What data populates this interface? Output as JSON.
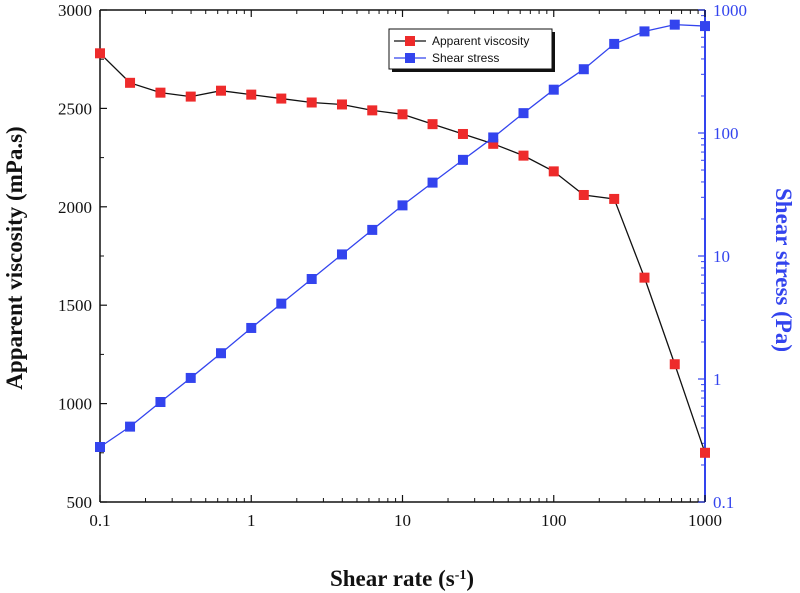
{
  "chart_data": {
    "type": "line",
    "xlabel_main": "Shear rate (s",
    "xlabel_sup": "-1",
    "xlabel_end": ")",
    "ylabel_left": "Apparent viscosity (mPa.s)",
    "ylabel_right": "Shear stress (Pa)",
    "x_scale": "log",
    "xlim": [
      0.1,
      1000
    ],
    "x_ticks": [
      0.1,
      1,
      10,
      100,
      1000
    ],
    "x_tick_labels": [
      "0.1",
      "1",
      "10",
      "100",
      "1000"
    ],
    "y_left_lim": [
      500,
      3000
    ],
    "y_left_ticks": [
      500,
      1000,
      1500,
      2000,
      2500,
      3000
    ],
    "y_left_tick_labels": [
      "500",
      "1000",
      "1500",
      "2000",
      "2500",
      "3000"
    ],
    "y_right_scale": "log",
    "y_right_lim": [
      0.1,
      1000
    ],
    "y_right_ticks": [
      0.1,
      1,
      10,
      100,
      1000
    ],
    "y_right_tick_labels": [
      "0.1",
      "1",
      "10",
      "100",
      "1000"
    ],
    "grid": false,
    "legend_position": "top-right",
    "x": [
      0.1,
      0.158,
      0.251,
      0.398,
      0.631,
      1,
      1.58,
      2.51,
      3.98,
      6.31,
      10,
      15.8,
      25.1,
      39.8,
      63.1,
      100,
      158,
      251,
      398,
      631,
      1000
    ],
    "series": [
      {
        "name": "Apparent viscosity",
        "axis": "left",
        "color": "#ee2b2b",
        "line_color": "#111111",
        "values": [
          2780,
          2630,
          2580,
          2560,
          2590,
          2570,
          2550,
          2530,
          2520,
          2490,
          2470,
          2420,
          2370,
          2320,
          2260,
          2180,
          2060,
          2040,
          1640,
          1200,
          750
        ]
      },
      {
        "name": "Shear stress",
        "axis": "right",
        "color": "#3344ee",
        "line_color": "#3344ee",
        "values": [
          0.28,
          0.41,
          0.65,
          1.02,
          1.62,
          2.6,
          4.1,
          6.5,
          10.3,
          16.3,
          25.8,
          39.5,
          60.5,
          92,
          145,
          225,
          330,
          530,
          670,
          760,
          740
        ]
      }
    ]
  }
}
